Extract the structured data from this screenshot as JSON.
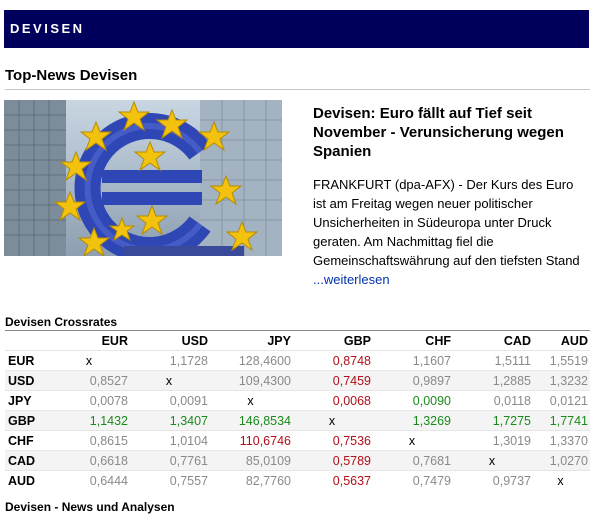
{
  "banner": {
    "title": "DEVISEN"
  },
  "top_news": {
    "title": "Top-News Devisen",
    "headline": "Devisen: Euro fällt auf Tief seit November - Verunsicherung wegen Spanien",
    "teaser": "FRANKFURT (dpa-AFX) - Der Kurs des Euro ist am Freitag wegen neuer politischer Unsicherheiten in Südeuropa unter Druck geraten. Am Nachmittag fiel die Gemeinschaftswährung auf den tiefsten Stand",
    "read_more": "...weiterlesen"
  },
  "crossrates": {
    "title": "Devisen Crossrates",
    "columns": [
      "EUR",
      "USD",
      "JPY",
      "GBP",
      "CHF",
      "CAD",
      "AUD"
    ],
    "rows": [
      {
        "ccy": "EUR",
        "cells": [
          {
            "v": "x",
            "t": "self"
          },
          {
            "v": "1,1728",
            "t": "n"
          },
          {
            "v": "128,4600",
            "t": "n"
          },
          {
            "v": "0,8748",
            "t": "d"
          },
          {
            "v": "1,1607",
            "t": "n"
          },
          {
            "v": "1,5111",
            "t": "n"
          },
          {
            "v": "1,5519",
            "t": "n"
          }
        ]
      },
      {
        "ccy": "USD",
        "cells": [
          {
            "v": "0,8527",
            "t": "n"
          },
          {
            "v": "x",
            "t": "self"
          },
          {
            "v": "109,4300",
            "t": "n"
          },
          {
            "v": "0,7459",
            "t": "d"
          },
          {
            "v": "0,9897",
            "t": "n"
          },
          {
            "v": "1,2885",
            "t": "n"
          },
          {
            "v": "1,3232",
            "t": "n"
          }
        ]
      },
      {
        "ccy": "JPY",
        "cells": [
          {
            "v": "0,0078",
            "t": "n"
          },
          {
            "v": "0,0091",
            "t": "n"
          },
          {
            "v": "x",
            "t": "self"
          },
          {
            "v": "0,0068",
            "t": "d"
          },
          {
            "v": "0,0090",
            "t": "u"
          },
          {
            "v": "0,0118",
            "t": "n"
          },
          {
            "v": "0,0121",
            "t": "n"
          }
        ]
      },
      {
        "ccy": "GBP",
        "cells": [
          {
            "v": "1,1432",
            "t": "u"
          },
          {
            "v": "1,3407",
            "t": "u"
          },
          {
            "v": "146,8534",
            "t": "u"
          },
          {
            "v": "x",
            "t": "self"
          },
          {
            "v": "1,3269",
            "t": "u"
          },
          {
            "v": "1,7275",
            "t": "u"
          },
          {
            "v": "1,7741",
            "t": "u"
          }
        ]
      },
      {
        "ccy": "CHF",
        "cells": [
          {
            "v": "0,8615",
            "t": "n"
          },
          {
            "v": "1,0104",
            "t": "n"
          },
          {
            "v": "110,6746",
            "t": "d"
          },
          {
            "v": "0,7536",
            "t": "d"
          },
          {
            "v": "x",
            "t": "self"
          },
          {
            "v": "1,3019",
            "t": "n"
          },
          {
            "v": "1,3370",
            "t": "n"
          }
        ]
      },
      {
        "ccy": "CAD",
        "cells": [
          {
            "v": "0,6618",
            "t": "n"
          },
          {
            "v": "0,7761",
            "t": "n"
          },
          {
            "v": "85,0109",
            "t": "n"
          },
          {
            "v": "0,5789",
            "t": "d"
          },
          {
            "v": "0,7681",
            "t": "n"
          },
          {
            "v": "x",
            "t": "self"
          },
          {
            "v": "1,0270",
            "t": "n"
          }
        ]
      },
      {
        "ccy": "AUD",
        "cells": [
          {
            "v": "0,6444",
            "t": "n"
          },
          {
            "v": "0,7557",
            "t": "n"
          },
          {
            "v": "82,7760",
            "t": "n"
          },
          {
            "v": "0,5637",
            "t": "d"
          },
          {
            "v": "0,7479",
            "t": "n"
          },
          {
            "v": "0,9737",
            "t": "n"
          },
          {
            "v": "x",
            "t": "self"
          }
        ]
      }
    ]
  },
  "section_news": {
    "title": "Devisen - News und Analysen"
  },
  "colors": {
    "banner": "#00005c",
    "up": "#1a8a1a",
    "down": "#b0101a",
    "link": "#0033aa"
  },
  "hero_image": {
    "icon": "euro-sculpture-image"
  }
}
